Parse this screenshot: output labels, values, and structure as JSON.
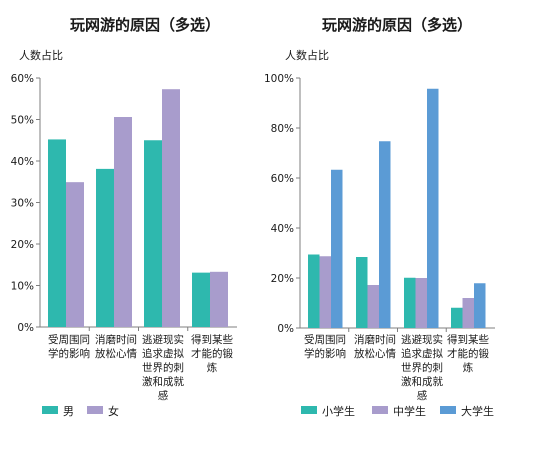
{
  "chart_data": [
    {
      "type": "bar",
      "title": "玩网游的原因（多选）",
      "ylabel": "人数占比",
      "xlabel": "",
      "categories": [
        [
          "受周围同",
          "学的影响"
        ],
        [
          "消磨时间",
          "放松心情"
        ],
        [
          "逃避现实",
          "追求虚拟",
          "世界的刺",
          "激和成就",
          "感"
        ],
        [
          "得到某些",
          "才能的锻",
          "炼"
        ]
      ],
      "ylim": [
        0,
        60
      ],
      "yticks": [
        "0%",
        "10%",
        "20%",
        "30%",
        "40%",
        "50%",
        "60%"
      ],
      "ytick_values": [
        0,
        10,
        20,
        30,
        40,
        50,
        60
      ],
      "grid": false,
      "legend_position": "bottom",
      "series": [
        {
          "name": "男",
          "color": "#2eb8ae",
          "values": [
            45.2,
            38.1,
            45.0,
            13.1
          ]
        },
        {
          "name": "女",
          "color": "#a89ccc",
          "values": [
            34.9,
            50.6,
            57.3,
            13.3
          ]
        }
      ]
    },
    {
      "type": "bar",
      "title": "玩网游的原因（多选）",
      "ylabel": "人数占比",
      "xlabel": "",
      "categories": [
        [
          "受周围同",
          "学的影响"
        ],
        [
          "消磨时间",
          "放松心情"
        ],
        [
          "逃避现实",
          "追求虚拟",
          "世界的刺",
          "激和成就",
          "感"
        ],
        [
          "得到某些",
          "才能的锻",
          "炼"
        ]
      ],
      "ylim": [
        0,
        100
      ],
      "yticks": [
        "0%",
        "20%",
        "40%",
        "60%",
        "80%",
        "100%"
      ],
      "ytick_values": [
        0,
        20,
        40,
        60,
        80,
        100
      ],
      "grid": false,
      "legend_position": "bottom",
      "series": [
        {
          "name": "小学生",
          "color": "#2eb8ae",
          "values": [
            29.4,
            28.4,
            20.1,
            8.1
          ]
        },
        {
          "name": "中学生",
          "color": "#a89ccc",
          "values": [
            28.7,
            17.2,
            20.0,
            12.0
          ]
        },
        {
          "name": "大学生",
          "color": "#5b9bd5",
          "values": [
            63.3,
            74.7,
            95.7,
            17.9
          ]
        }
      ]
    }
  ]
}
